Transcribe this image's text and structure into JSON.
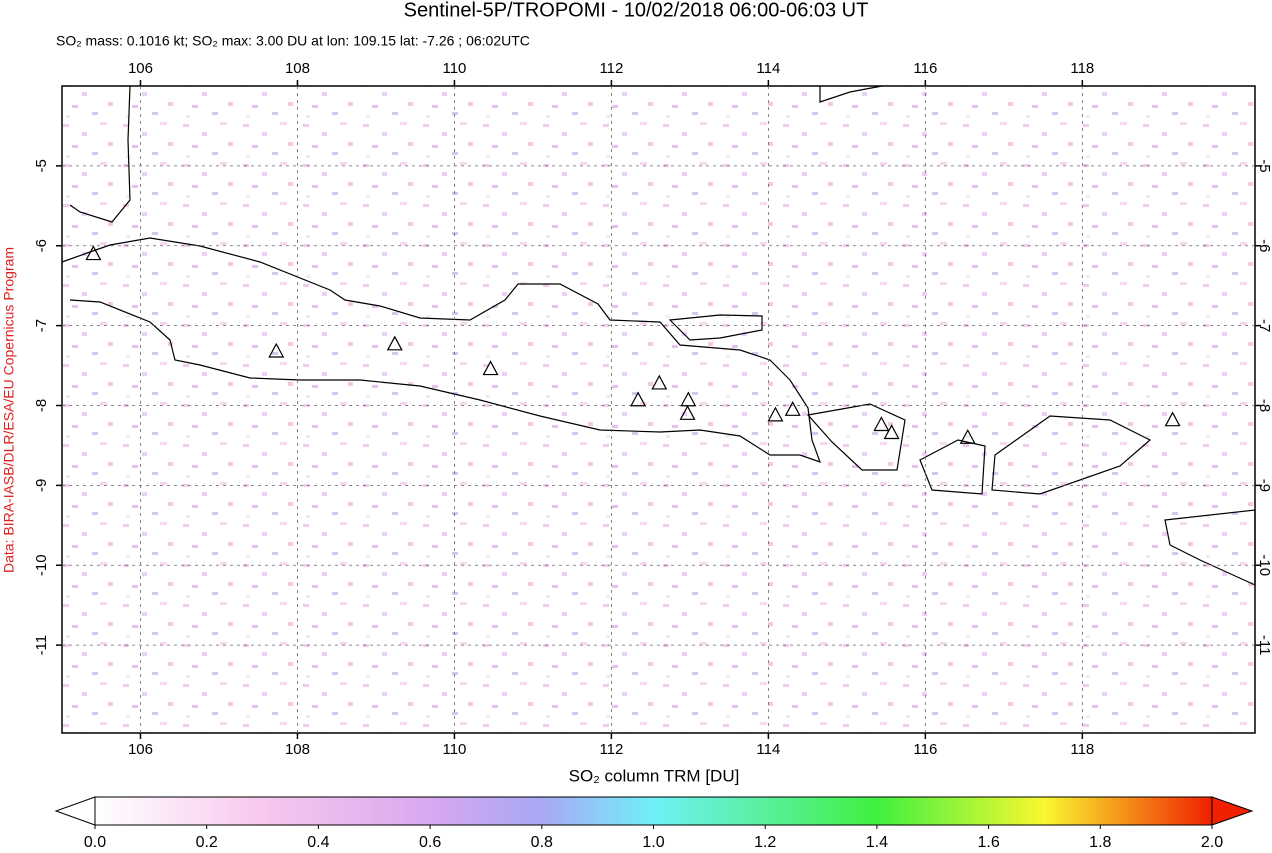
{
  "header": {
    "title": "Sentinel-5P/TROPOMI - 10/02/2018 06:00-06:03 UT",
    "subtitle": "SO₂ mass: 0.1016 kt; SO₂ max: 3.00 DU at lon: 109.15 lat: -7.26 ; 06:02UTC"
  },
  "chart_data": {
    "type": "map",
    "xlim": [
      105,
      120.2
    ],
    "ylim": [
      -12.1,
      -4.0
    ],
    "xticks": [
      106,
      108,
      110,
      112,
      114,
      116,
      118
    ],
    "yticks": [
      -5,
      -6,
      -7,
      -8,
      -9,
      -10,
      -11
    ],
    "grid": true,
    "credit": "Data: BIRA-IASB/DLR/ESA/EU Copernicus Program",
    "volcanoes": {
      "lon": [
        105.4,
        107.73,
        109.24,
        110.46,
        112.34,
        112.61,
        112.98,
        112.97,
        114.09,
        114.31,
        115.44,
        115.57,
        116.54,
        119.15
      ],
      "lat": [
        -6.11,
        -7.33,
        -7.24,
        -7.55,
        -7.94,
        -7.73,
        -7.94,
        -8.11,
        -8.13,
        -8.06,
        -8.25,
        -8.35,
        -8.41,
        -8.19
      ]
    },
    "colorbar": {
      "label": "SO₂ column TRM [DU]",
      "lim": [
        0,
        2
      ],
      "ticks": [
        {
          "value": 0,
          "label": "0.0"
        },
        {
          "value": 0.2,
          "label": "0.2"
        },
        {
          "value": 0.4,
          "label": "0.4"
        },
        {
          "value": 0.6,
          "label": "0.6"
        },
        {
          "value": 0.8,
          "label": "0.8"
        },
        {
          "value": 1,
          "label": "1.0"
        },
        {
          "value": 1.2,
          "label": "1.2"
        },
        {
          "value": 1.4,
          "label": "1.4"
        },
        {
          "value": 1.6,
          "label": "1.6"
        },
        {
          "value": 1.8,
          "label": "1.8"
        },
        {
          "value": 2,
          "label": "2.0"
        }
      ]
    }
  }
}
